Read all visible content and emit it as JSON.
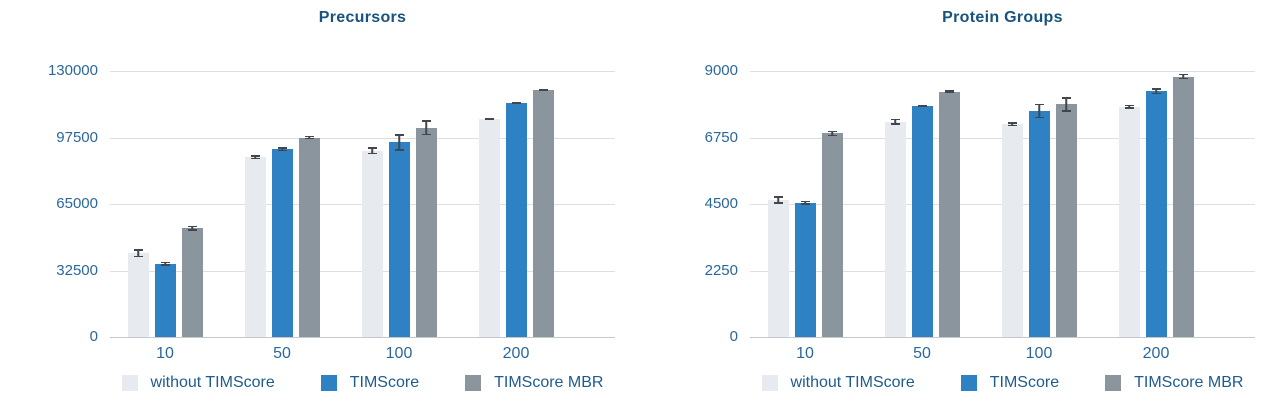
{
  "styles": {
    "background": "#ffffff",
    "grid_color": "#dbdfe3",
    "axis_line_color": "#c3c9ce",
    "tick_text_color": "#2a679c",
    "title_color": "#17537e",
    "legend_text_color": "#1d5c90",
    "error_bar_color": "#41474d",
    "series_colors": [
      "#e7ebef",
      "#2e82c4",
      "#8b959e"
    ]
  },
  "chart_data": [
    {
      "type": "bar",
      "title": "Precursors",
      "xlabel": "",
      "ylabel": "",
      "categories": [
        "10",
        "50",
        "100",
        "200"
      ],
      "series": [
        {
          "name": "without TIMScore",
          "color": "#e7ebef",
          "values": [
            40900,
            87800,
            91000,
            106500
          ],
          "errors": [
            2000,
            1000,
            1800,
            500
          ]
        },
        {
          "name": "TIMScore",
          "color": "#2e82c4",
          "values": [
            35700,
            91700,
            95100,
            114200
          ],
          "errors": [
            1000,
            1000,
            4000,
            500
          ]
        },
        {
          "name": "TIMScore MBR",
          "color": "#8b959e",
          "values": [
            53100,
            97500,
            102300,
            120700
          ],
          "errors": [
            1200,
            800,
            3700,
            500
          ]
        }
      ],
      "ylim": [
        0,
        130000
      ],
      "yticks": [
        0,
        32500,
        65000,
        97500,
        130000
      ],
      "grid": true,
      "legend_position": "bottom"
    },
    {
      "type": "bar",
      "title": "Protein Groups",
      "xlabel": "",
      "ylabel": "",
      "categories": [
        "10",
        "50",
        "100",
        "200"
      ],
      "series": [
        {
          "name": "without TIMScore",
          "color": "#e7ebef",
          "values": [
            4630,
            7280,
            7200,
            7790
          ],
          "errors": [
            130,
            100,
            70,
            70
          ]
        },
        {
          "name": "TIMScore",
          "color": "#2e82c4",
          "values": [
            4540,
            7820,
            7650,
            8320
          ],
          "errors": [
            70,
            40,
            250,
            100
          ]
        },
        {
          "name": "TIMScore MBR",
          "color": "#8b959e",
          "values": [
            6890,
            8300,
            7870,
            8810
          ],
          "errors": [
            90,
            50,
            250,
            90
          ]
        }
      ],
      "ylim": [
        0,
        9000
      ],
      "yticks": [
        0,
        2250,
        4500,
        6750,
        9000
      ],
      "grid": true,
      "legend_position": "bottom"
    }
  ]
}
